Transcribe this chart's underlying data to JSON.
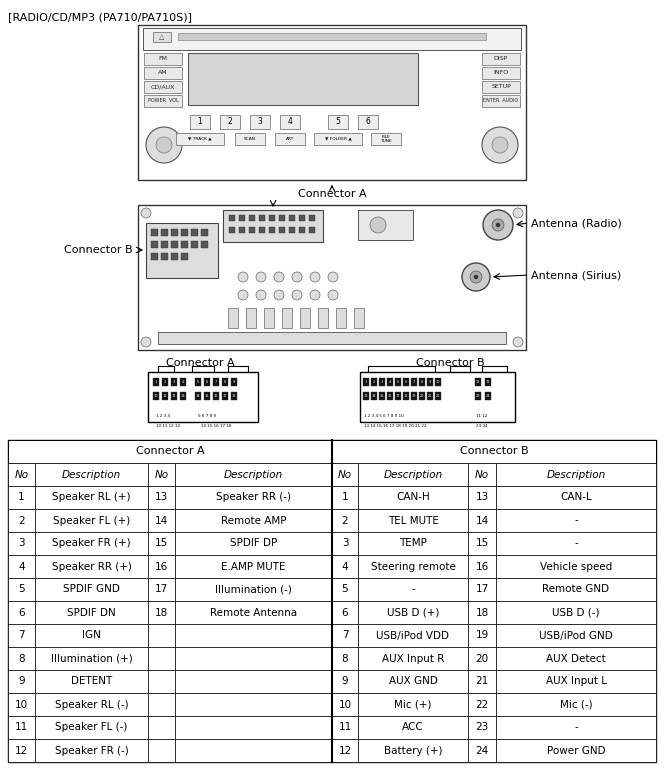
{
  "title": "[RADIO/CD/MP3 (PA710/PA710S)]",
  "conn_a_label": "Connector A",
  "conn_b_label": "Connector B",
  "antenna_radio_label": "Antenna (Radio)",
  "antenna_sirius_label": "Antenna (Sirius)",
  "connector_a_header": "Connector A",
  "connector_b_header": "Connector B",
  "table_col_headers": [
    "No",
    "Description",
    "No",
    "Description",
    "No",
    "Description",
    "No",
    "Description"
  ],
  "conn_a_rows": [
    [
      "1",
      "Speaker RL (+)",
      "13",
      "Speaker RR (-)"
    ],
    [
      "2",
      "Speaker FL (+)",
      "14",
      "Remote AMP"
    ],
    [
      "3",
      "Speaker FR (+)",
      "15",
      "SPDIF DP"
    ],
    [
      "4",
      "Speaker RR (+)",
      "16",
      "E.AMP MUTE"
    ],
    [
      "5",
      "SPDIF GND",
      "17",
      "Illumination (-)"
    ],
    [
      "6",
      "SPDIF DN",
      "18",
      "Remote Antenna"
    ],
    [
      "7",
      "IGN",
      "",
      ""
    ],
    [
      "8",
      "Illumination (+)",
      "",
      ""
    ],
    [
      "9",
      "DETENT",
      "",
      ""
    ],
    [
      "10",
      "Speaker RL (-)",
      "",
      ""
    ],
    [
      "11",
      "Speaker FL (-)",
      "",
      ""
    ],
    [
      "12",
      "Speaker FR (-)",
      "",
      ""
    ]
  ],
  "conn_b_rows": [
    [
      "1",
      "CAN-H",
      "13",
      "CAN-L"
    ],
    [
      "2",
      "TEL MUTE",
      "14",
      "-"
    ],
    [
      "3",
      "TEMP",
      "15",
      "-"
    ],
    [
      "4",
      "Steering remote",
      "16",
      "Vehicle speed"
    ],
    [
      "5",
      "-",
      "17",
      "Remote GND"
    ],
    [
      "6",
      "USB D (+)",
      "18",
      "USB D (-)"
    ],
    [
      "7",
      "USB/iPod VDD",
      "19",
      "USB/iPod GND"
    ],
    [
      "8",
      "AUX Input R",
      "20",
      "AUX Detect"
    ],
    [
      "9",
      "AUX GND",
      "21",
      "AUX Input L"
    ],
    [
      "10",
      "Mic (+)",
      "22",
      "Mic (-)"
    ],
    [
      "11",
      "ACC",
      "23",
      "-"
    ],
    [
      "12",
      "Battery (+)",
      "24",
      "Power GND"
    ]
  ],
  "bg_color": "#ffffff"
}
